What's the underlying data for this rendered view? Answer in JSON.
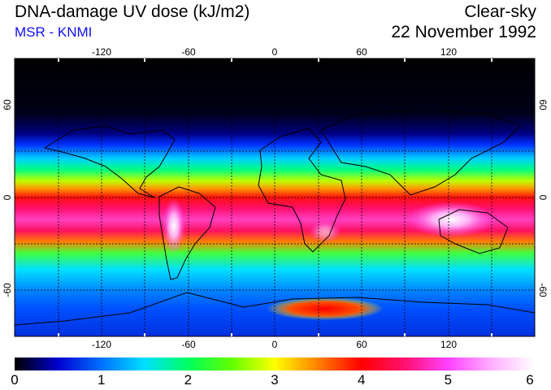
{
  "header": {
    "title": "DNA-damage UV dose (kJ/m2)",
    "subtitle": "MSR - KNMI",
    "condition": "Clear-sky",
    "date": "22 November 1992"
  },
  "map": {
    "lon_labels": [
      "-120",
      "-60",
      "0",
      "60",
      "120"
    ],
    "lat_labels": [
      "60",
      "0",
      "-60"
    ],
    "lon_range": [
      -180,
      180
    ],
    "lat_range": [
      -90,
      90
    ],
    "graticule": "dashed every 30 degrees",
    "colors": {
      "coast": "#000000",
      "grid": "#000000",
      "ticks": "#ffffff"
    }
  },
  "colorbar": {
    "min": 0,
    "max": 6,
    "labels": [
      "0",
      "1",
      "2",
      "3",
      "4",
      "5",
      "6"
    ],
    "stops": [
      "#000000",
      "#0000d0",
      "#0070ff",
      "#00e0ff",
      "#00ff60",
      "#60ff00",
      "#ffff00",
      "#ff8000",
      "#ff0000",
      "#ff1070",
      "#ff40ff",
      "#ffb0ff",
      "#ffffff"
    ]
  }
}
